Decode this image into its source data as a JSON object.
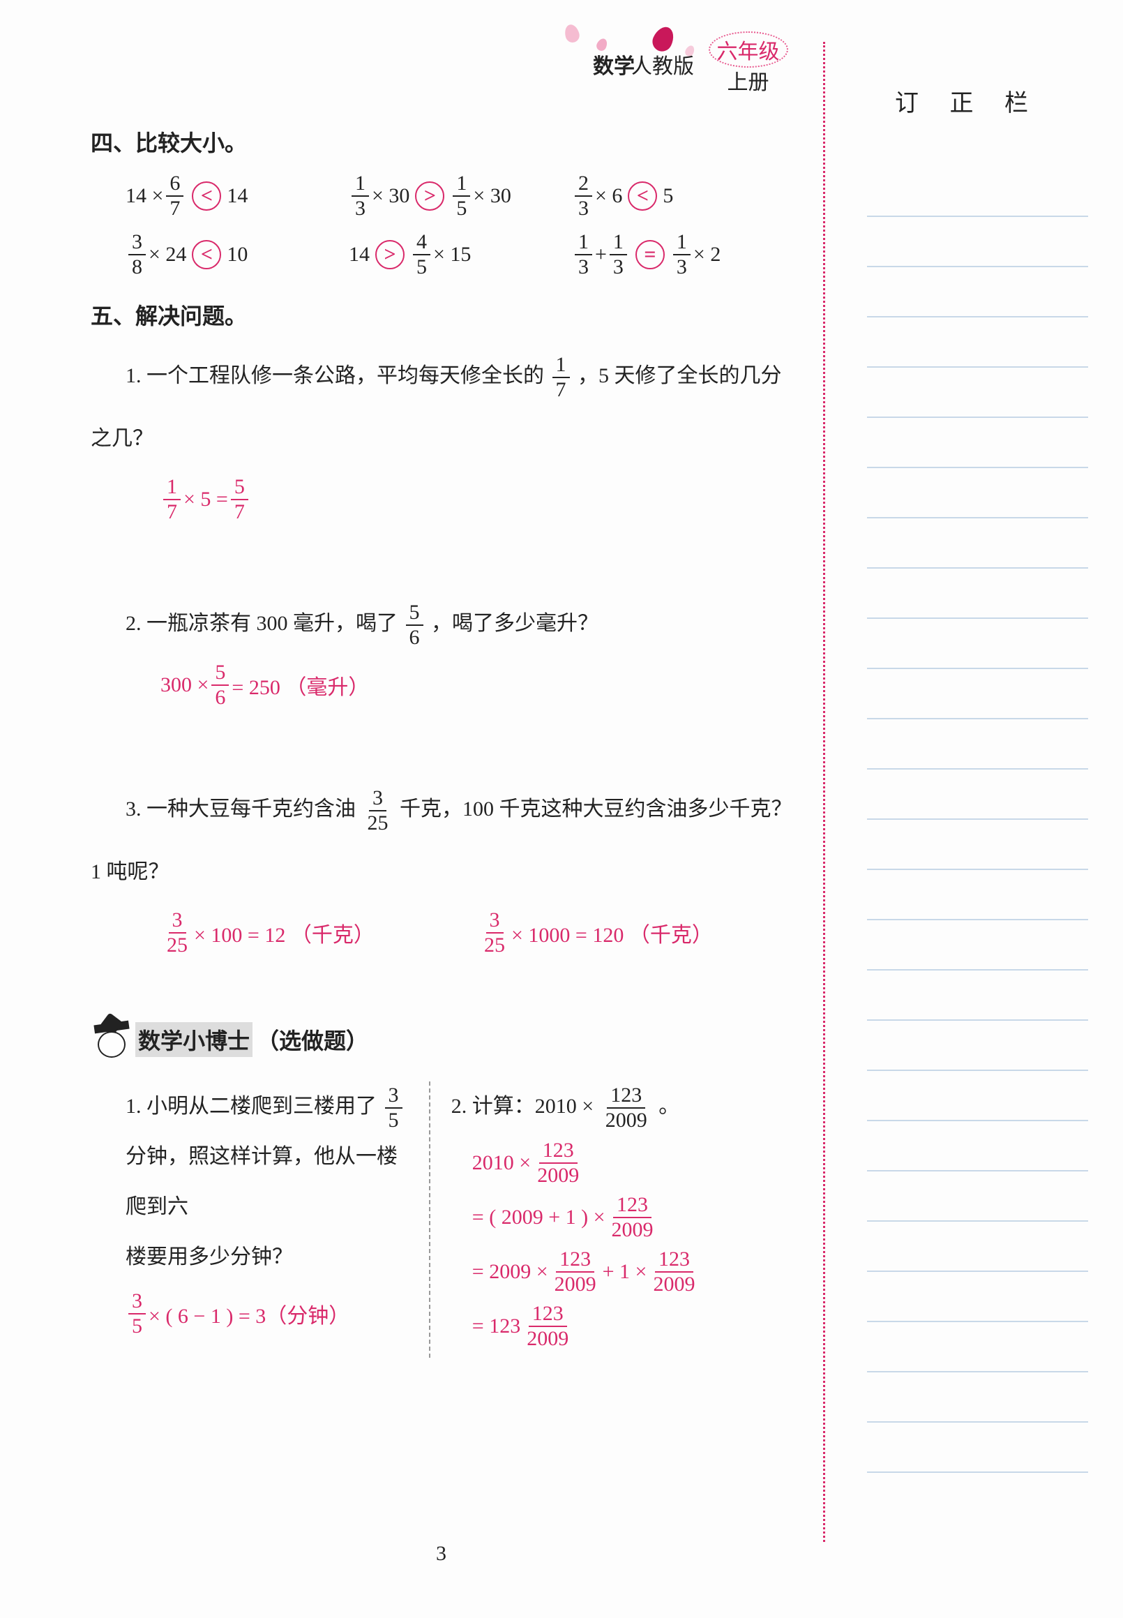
{
  "header": {
    "subject": "数学",
    "edition": "人教版",
    "grade": "六年级",
    "volume": "上册"
  },
  "sidebar": {
    "title": "订 正 栏",
    "line_count": 26
  },
  "section4": {
    "title": "四、比较大小。",
    "items": [
      {
        "l_pre": "14 ×",
        "l_num": "6",
        "l_den": "7",
        "op": "<",
        "r": "14"
      },
      {
        "l_num": "1",
        "l_den": "3",
        "l_post": "× 30",
        "op": ">",
        "r_num": "1",
        "r_den": "5",
        "r_post": "× 30"
      },
      {
        "l_num": "2",
        "l_den": "3",
        "l_post": "× 6",
        "op": "<",
        "r": "5"
      },
      {
        "l_num": "3",
        "l_den": "8",
        "l_post": "× 24",
        "op": "<",
        "r": "10"
      },
      {
        "l_pre": "14",
        "op": ">",
        "r_num": "4",
        "r_den": "5",
        "r_post": "× 15"
      },
      {
        "l1_num": "1",
        "l1_den": "3",
        "mid": "+",
        "l2_num": "1",
        "l2_den": "3",
        "op": "=",
        "r_num": "1",
        "r_den": "3",
        "r_post": "× 2"
      }
    ]
  },
  "section5": {
    "title": "五、解决问题。",
    "q1": {
      "text_a": "1. 一个工程队修一条公路，平均每天修全长的",
      "f_num": "1",
      "f_den": "7",
      "text_b": "，5 天修了全长的几分",
      "text_c": "之几？",
      "ans_a_num": "1",
      "ans_a_den": "7",
      "ans_mid": "× 5 =",
      "ans_b_num": "5",
      "ans_b_den": "7"
    },
    "q2": {
      "text_a": "2. 一瓶凉茶有 300 毫升，喝了",
      "f_num": "5",
      "f_den": "6",
      "text_b": "，喝了多少毫升？",
      "ans_pre": "300 ×",
      "ans_num": "5",
      "ans_den": "6",
      "ans_post": "= 250 （毫升）"
    },
    "q3": {
      "text_a": "3. 一种大豆每千克约含油",
      "f_num": "3",
      "f_den": "25",
      "text_b": "千克，100 千克这种大豆约含油多少千克？",
      "text_c": "1 吨呢？",
      "ans1_num": "3",
      "ans1_den": "25",
      "ans1_post": "× 100 = 12 （千克）",
      "ans2_num": "3",
      "ans2_den": "25",
      "ans2_post": "× 1000 = 120 （千克）"
    }
  },
  "xbs": {
    "title": "数学小博士",
    "sub": "（选做题）",
    "q1": {
      "line1a": "1. 小明从二楼爬到三楼用了",
      "f_num": "3",
      "f_den": "5",
      "line2": "分钟，照这样计算，他从一楼爬到六",
      "line3": "楼要用多少分钟？",
      "ans_num": "3",
      "ans_den": "5",
      "ans_post": "× ( 6 − 1 ) = 3（分钟）"
    },
    "q2": {
      "line1": "2. 计算：2010 ×",
      "f_num": "123",
      "f_den": "2009",
      "end": "。",
      "s1_pre": "2010 ×",
      "s1_num": "123",
      "s1_den": "2009",
      "s2_pre": "= ( 2009 + 1 ) ×",
      "s2_num": "123",
      "s2_den": "2009",
      "s3_pre": "= 2009 ×",
      "s3a_num": "123",
      "s3a_den": "2009",
      "s3_mid": "+ 1 ×",
      "s3b_num": "123",
      "s3b_den": "2009",
      "s4_pre": "= 123",
      "s4_num": "123",
      "s4_den": "2009"
    }
  },
  "page_number": "3"
}
